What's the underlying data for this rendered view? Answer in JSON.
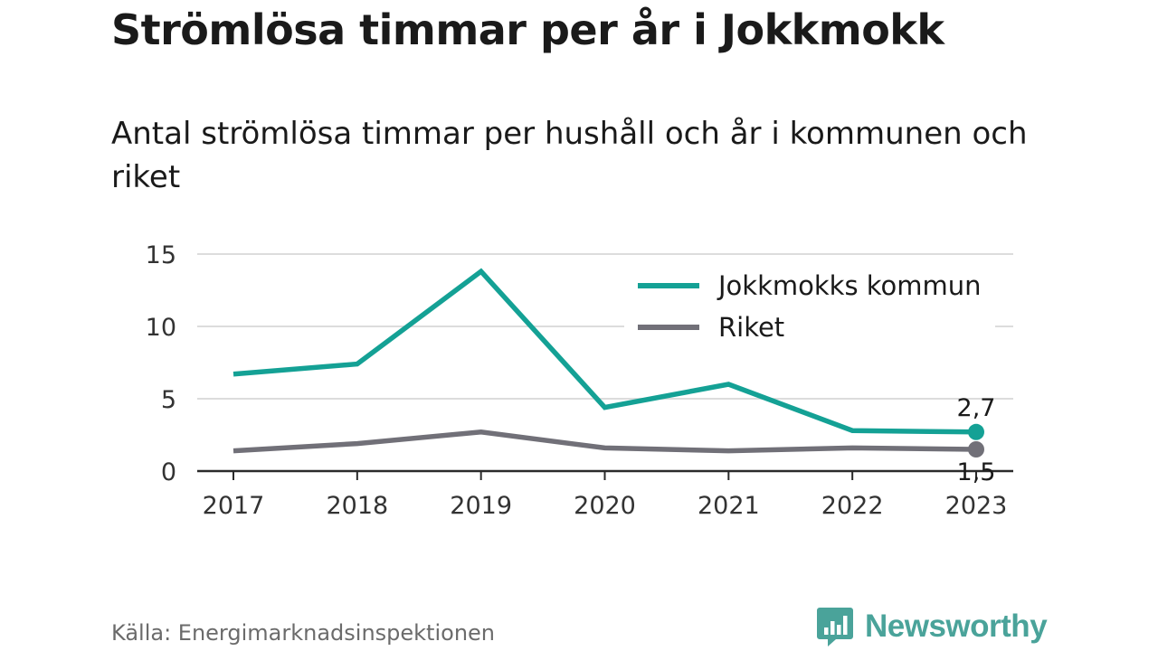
{
  "title": "Strömlösa timmar per år i Jokkmokk",
  "subtitle": "Antal strömlösa timmar per hushåll och år i kommunen och riket",
  "source": "Källa: Energimarknadsinspektionen",
  "brand": {
    "name": "Newsworthy",
    "icon": "newsworthy-logo-icon",
    "color": "#4aa39a"
  },
  "colors": {
    "jokkmokk": "#14a195",
    "riket": "#717078",
    "grid": "#dcdcdc",
    "axis": "#2a2a2a"
  },
  "chart_data": {
    "type": "line",
    "categories": [
      "2017",
      "2018",
      "2019",
      "2020",
      "2021",
      "2022",
      "2023"
    ],
    "series": [
      {
        "name": "Jokkmokks kommun",
        "values": [
          6.7,
          7.4,
          13.8,
          4.4,
          6.0,
          2.8,
          2.7
        ],
        "color": "#14a195"
      },
      {
        "name": "Riket",
        "values": [
          1.4,
          1.9,
          2.7,
          1.6,
          1.4,
          1.6,
          1.5
        ],
        "color": "#717078"
      }
    ],
    "end_labels": [
      "2,7",
      "1,5"
    ],
    "yticks": [
      0,
      5,
      10,
      15
    ],
    "ylim": [
      0,
      15
    ],
    "grid": true,
    "legend": "top-right",
    "xlabel": "",
    "ylabel": ""
  }
}
